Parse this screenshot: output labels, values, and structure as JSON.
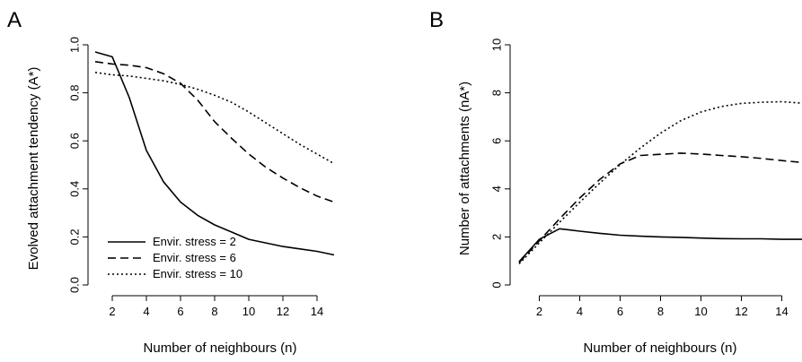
{
  "chart_data": [
    {
      "panel_label": "A",
      "type": "line",
      "xlabel": "Number of neighbours (n)",
      "ylabel": "Evolved attachment tendency (A*)",
      "xlim": [
        1,
        15
      ],
      "ylim": [
        0,
        1.0
      ],
      "xticks": [
        2,
        4,
        6,
        8,
        10,
        12,
        14
      ],
      "yticks": [
        0.0,
        0.2,
        0.4,
        0.6,
        0.8,
        1.0
      ],
      "ytick_labels": [
        "0.0",
        "0.2",
        "0.4",
        "0.6",
        "0.8",
        "1.0"
      ],
      "legend_position": "bottom-left",
      "series": [
        {
          "name": "Envir. stress = 2",
          "style": "solid",
          "x": [
            1,
            2,
            3,
            4,
            5,
            6,
            7,
            8,
            9,
            10,
            11,
            12,
            13,
            14,
            15
          ],
          "y": [
            0.97,
            0.95,
            0.78,
            0.56,
            0.43,
            0.345,
            0.29,
            0.25,
            0.22,
            0.19,
            0.175,
            0.16,
            0.15,
            0.14,
            0.125
          ]
        },
        {
          "name": "Envir. stress = 6",
          "style": "dashed",
          "x": [
            1,
            2,
            3,
            4,
            5,
            6,
            7,
            8,
            9,
            10,
            11,
            12,
            13,
            14,
            15
          ],
          "y": [
            0.93,
            0.92,
            0.915,
            0.905,
            0.88,
            0.84,
            0.77,
            0.68,
            0.61,
            0.545,
            0.49,
            0.445,
            0.405,
            0.37,
            0.345
          ]
        },
        {
          "name": "Envir. stress = 10",
          "style": "dotted",
          "x": [
            1,
            2,
            3,
            4,
            5,
            6,
            7,
            8,
            9,
            10,
            11,
            12,
            13,
            14,
            15
          ],
          "y": [
            0.885,
            0.875,
            0.87,
            0.86,
            0.85,
            0.835,
            0.815,
            0.79,
            0.76,
            0.72,
            0.675,
            0.63,
            0.585,
            0.545,
            0.505
          ]
        }
      ]
    },
    {
      "panel_label": "B",
      "type": "line",
      "xlabel": "Number of neighbours (n)",
      "ylabel": "Number of attachments (nA*)",
      "xlim": [
        1,
        15
      ],
      "ylim": [
        0,
        10
      ],
      "xticks": [
        2,
        4,
        6,
        8,
        10,
        12,
        14
      ],
      "yticks": [
        0,
        2,
        4,
        6,
        8,
        10
      ],
      "ytick_labels": [
        "0",
        "2",
        "4",
        "6",
        "8",
        "10"
      ],
      "series": [
        {
          "style": "solid",
          "x": [
            1,
            2,
            3,
            4,
            5,
            6,
            7,
            8,
            9,
            10,
            11,
            12,
            13,
            14,
            15
          ],
          "y": [
            0.97,
            1.9,
            2.34,
            2.24,
            2.15,
            2.07,
            2.03,
            2.0,
            1.98,
            1.95,
            1.93,
            1.92,
            1.92,
            1.9,
            1.9
          ]
        },
        {
          "style": "dashed",
          "x": [
            1,
            2,
            3,
            4,
            5,
            6,
            7,
            8,
            9,
            10,
            11,
            12,
            13,
            14,
            15
          ],
          "y": [
            0.93,
            1.84,
            2.75,
            3.62,
            4.4,
            5.04,
            5.39,
            5.44,
            5.49,
            5.45,
            5.39,
            5.34,
            5.27,
            5.18,
            5.1
          ]
        },
        {
          "style": "dotted",
          "x": [
            1,
            2,
            3,
            4,
            5,
            6,
            7,
            8,
            9,
            10,
            11,
            12,
            13,
            14,
            15
          ],
          "y": [
            0.88,
            1.75,
            2.61,
            3.44,
            4.25,
            5.01,
            5.7,
            6.32,
            6.84,
            7.2,
            7.43,
            7.56,
            7.61,
            7.63,
            7.57
          ]
        }
      ]
    }
  ]
}
